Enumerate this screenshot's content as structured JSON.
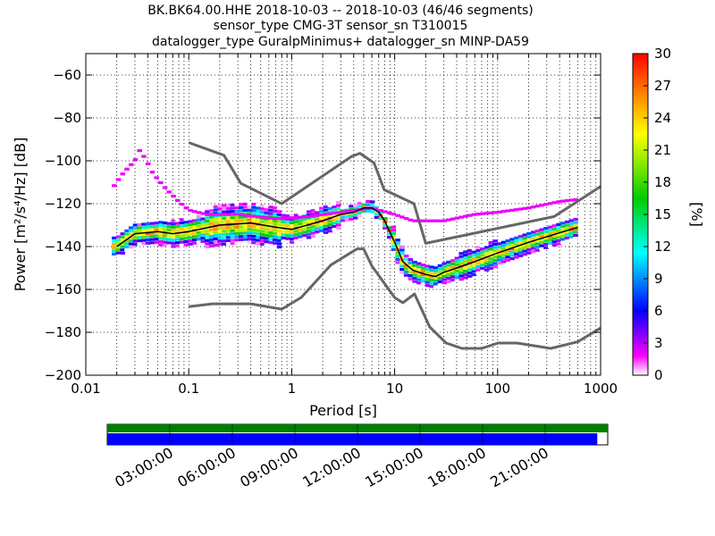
{
  "title_lines": [
    "BK.BK64.00.HHE   2018-10-03 -- 2018-10-03  (46/46 segments)",
    "sensor_type CMG-3T sensor_sn T310015",
    "datalogger_type GuralpMinimus+ datalogger_sn MINP-DA59"
  ],
  "chart_data": {
    "type": "heatmap",
    "xlabel": "Period [s]",
    "ylabel": "Power [m²/s⁴/Hz] [dB]",
    "xscale": "log",
    "xlim": [
      0.01,
      1000
    ],
    "ylim": [
      -200,
      -50
    ],
    "x_tick_labels": [
      "0.01",
      "0.1",
      "1",
      "10",
      "100",
      "1000"
    ],
    "y_ticks": [
      -200,
      -180,
      -160,
      -140,
      -120,
      -100,
      -80,
      -60
    ],
    "y_tick_labels": [
      "−200",
      "−180",
      "−160",
      "−140",
      "−120",
      "−100",
      "−80",
      "−60"
    ],
    "grid": true,
    "colorbar": {
      "label": "[%]",
      "ticks": [
        0,
        3,
        6,
        9,
        12,
        15,
        18,
        21,
        24,
        27,
        30
      ],
      "range": [
        0,
        30
      ]
    },
    "nhnm": {
      "name": "NHNM",
      "x": [
        0.1,
        0.22,
        0.32,
        0.8,
        3.8,
        4.6,
        6.3,
        7.9,
        15.4,
        20,
        354,
        1000
      ],
      "y": [
        -91.5,
        -97.4,
        -110.5,
        -120,
        -98,
        -96.5,
        -101,
        -113.5,
        -120,
        -138.5,
        -126,
        -112
      ]
    },
    "nlnm": {
      "name": "NLNM",
      "x": [
        0.1,
        0.17,
        0.4,
        0.8,
        1.24,
        2.4,
        4.3,
        5,
        6,
        10,
        12,
        15.6,
        21.9,
        31.6,
        45,
        70,
        101,
        154,
        328,
        600,
        1000
      ],
      "y": [
        -168,
        -166.7,
        -166.7,
        -169.2,
        -163.7,
        -148.6,
        -141.1,
        -141.1,
        -149,
        -163.8,
        -166.2,
        -162.1,
        -177.5,
        -185,
        -187.5,
        -187.5,
        -185,
        -185,
        -187.5,
        -184.4,
        -178
      ]
    },
    "mode_curve": {
      "name": "mode",
      "x": [
        0.02,
        0.03,
        0.05,
        0.07,
        0.1,
        0.2,
        0.4,
        0.7,
        1,
        2,
        3,
        4,
        5,
        6,
        7,
        8,
        10,
        12,
        15,
        20,
        25,
        30,
        40,
        60,
        100,
        200,
        600
      ],
      "y": [
        -140,
        -134,
        -133,
        -134,
        -133,
        -130,
        -129,
        -131,
        -132,
        -128,
        -125,
        -124,
        -122,
        -122,
        -124,
        -128,
        -138,
        -147,
        -151,
        -153,
        -154,
        -152,
        -150,
        -147,
        -143,
        -138,
        -131
      ]
    },
    "outlier_curve": {
      "name": "outlier",
      "x": [
        0.018,
        0.022,
        0.026,
        0.03,
        0.033,
        0.038,
        0.045,
        0.06,
        0.08,
        0.1,
        0.15,
        0.3,
        0.7,
        1.5,
        3,
        6,
        10,
        15,
        30,
        60,
        100,
        200,
        400,
        600
      ],
      "y": [
        -113,
        -107,
        -103,
        -100,
        -95,
        -99,
        -106,
        -113,
        -119,
        -123,
        -125,
        -125,
        -127,
        -126,
        -124,
        -122,
        -125,
        -128,
        -128,
        -125,
        -124,
        -122,
        -119,
        -118
      ]
    },
    "time_axis": {
      "labels": [
        "03:00:00",
        "06:00:00",
        "09:00:00",
        "12:00:00",
        "15:00:00",
        "18:00:00",
        "21:00:00"
      ],
      "hours": [
        3,
        6,
        9,
        12,
        15,
        18,
        21
      ],
      "span_hours": 24,
      "green_coverage_end_hour": 24,
      "blue_coverage_end_hour": 23.5
    }
  },
  "colors": {
    "nm_curves": "#666666",
    "mode_curve": "#000000",
    "coverage_green": "#007f00",
    "coverage_blue": "#0000ff"
  }
}
